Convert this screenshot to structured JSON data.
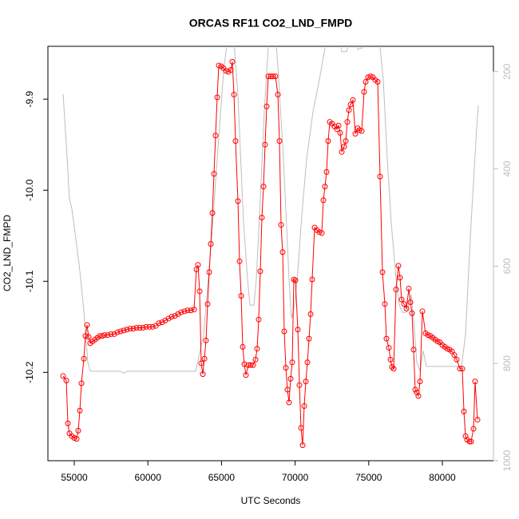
{
  "chart_data": {
    "type": "line",
    "title": "ORCAS RF11 CO2_LND_FMPD",
    "x_label": "UTC Seconds",
    "y_label": "CO2_LND_FMPD",
    "xlim": [
      53210,
      83471
    ],
    "xticks": [
      55000,
      60000,
      65000,
      70000,
      75000,
      80000
    ],
    "ylim": [
      -10.297,
      -9.842
    ],
    "yticks": [
      -10.2,
      -10.1,
      {
        "value": -10,
        "label": "-10.0"
      },
      -9.9
    ],
    "y2lim": [
      1000,
      148
    ],
    "y2ticks": [
      200,
      400,
      600,
      800,
      1000
    ],
    "grid": false,
    "series": [
      {
        "color": "#bebebe",
        "axis": "y2",
        "x": [
          54241,
          54458,
          54675,
          54837,
          55108,
          55380,
          55651,
          55922,
          56085,
          58091,
          58362,
          58633,
          63243,
          63785,
          64327,
          64707,
          65141,
          65466,
          65792,
          66117,
          66496,
          66768,
          66930,
          67202,
          67365,
          67636,
          67907,
          68178,
          68341,
          68666,
          68883,
          69208,
          69588,
          69751,
          69967,
          70184,
          70455,
          70781,
          71215,
          71649,
          72083,
          72462,
          72896,
          73167,
          73493,
          73655,
          73926,
          74252,
          74577,
          74903,
          75662,
          75987,
          76259,
          76530,
          76855,
          77072,
          77289,
          77560,
          77722,
          77885,
          78048,
          78265,
          78482,
          78699,
          78916,
          81302,
          81573,
          81953,
          82333,
          82441
        ],
        "values": [
          246,
          348,
          462,
          482,
          544,
          610,
          692,
          798,
          816,
          816,
          820,
          816,
          816,
          741,
          544,
          380,
          200,
          118,
          118,
          249,
          511,
          626,
          680,
          680,
          626,
          462,
          282,
          148,
          118,
          118,
          216,
          380,
          626,
          708,
          680,
          610,
          495,
          380,
          282,
          216,
          143,
          118,
          118,
          159,
          159,
          143,
          118,
          154,
          151,
          118,
          118,
          216,
          380,
          511,
          626,
          680,
          695,
          695,
          680,
          659,
          708,
          798,
          816,
          774,
          806,
          806,
          741,
          511,
          315,
          270
        ]
      },
      {
        "color": "#ff0000",
        "marker": "circle",
        "x": [
          54241,
          54458,
          54566,
          54675,
          54837,
          55000,
          55163,
          55271,
          55380,
          55488,
          55651,
          55759,
          55868,
          55976,
          56085,
          56247,
          56410,
          56573,
          56736,
          56898,
          57061,
          57278,
          57495,
          57712,
          57928,
          58145,
          58362,
          58579,
          58796,
          59013,
          59230,
          59447,
          59664,
          59881,
          60098,
          60315,
          60531,
          60748,
          60965,
          61182,
          61399,
          61616,
          61833,
          62050,
          62267,
          62483,
          62700,
          62917,
          63135,
          63297,
          63406,
          63514,
          63623,
          63731,
          63839,
          63948,
          64056,
          64165,
          64273,
          64382,
          64490,
          64598,
          64707,
          64815,
          64978,
          65141,
          65304,
          65466,
          65629,
          65737,
          65846,
          65954,
          66117,
          66225,
          66334,
          66442,
          66551,
          66659,
          66822,
          66985,
          67148,
          67310,
          67419,
          67527,
          67636,
          67744,
          67853,
          67961,
          68069,
          68178,
          68341,
          68503,
          68666,
          68829,
          68937,
          69046,
          69154,
          69262,
          69371,
          69479,
          69588,
          69696,
          69805,
          69913,
          70021,
          70184,
          70293,
          70401,
          70510,
          70618,
          70727,
          70835,
          70944,
          71052,
          71160,
          71323,
          71486,
          71649,
          71811,
          71920,
          72028,
          72137,
          72245,
          72354,
          72516,
          72679,
          72842,
          72950,
          73059,
          73167,
          73330,
          73438,
          73547,
          73655,
          73764,
          73926,
          74089,
          74252,
          74360,
          74523,
          74686,
          74794,
          74957,
          75120,
          75282,
          75445,
          75608,
          75770,
          75933,
          76096,
          76204,
          76367,
          76475,
          76584,
          76692,
          76855,
          77017,
          77126,
          77234,
          77397,
          77560,
          77722,
          77831,
          77939,
          78048,
          78156,
          78265,
          78373,
          78482,
          78644,
          78861,
          79024,
          79187,
          79350,
          79512,
          79675,
          79838,
          80000,
          80163,
          80326,
          80489,
          80651,
          80814,
          80977,
          81194,
          81357,
          81465,
          81573,
          81682,
          81844,
          81953,
          82116,
          82224,
          82387
        ],
        "values": [
          -10.204,
          -10.209,
          -10.256,
          -10.267,
          -10.27,
          -10.272,
          -10.273,
          -10.264,
          -10.242,
          -10.212,
          -10.185,
          -10.16,
          -10.148,
          -10.161,
          -10.168,
          -10.166,
          -10.164,
          -10.162,
          -10.16,
          -10.16,
          -10.159,
          -10.159,
          -10.158,
          -10.158,
          -10.156,
          -10.155,
          -10.154,
          -10.153,
          -10.152,
          -10.152,
          -10.151,
          -10.151,
          -10.151,
          -10.15,
          -10.15,
          -10.15,
          -10.149,
          -10.146,
          -10.145,
          -10.143,
          -10.141,
          -10.139,
          -10.138,
          -10.136,
          -10.134,
          -10.133,
          -10.132,
          -10.132,
          -10.131,
          -10.087,
          -10.082,
          -10.111,
          -10.19,
          -10.202,
          -10.185,
          -10.165,
          -10.125,
          -10.09,
          -10.059,
          -10.025,
          -9.982,
          -9.94,
          -9.898,
          -9.863,
          -9.864,
          -9.866,
          -9.869,
          -9.87,
          -9.868,
          -9.859,
          -9.895,
          -9.946,
          -10.012,
          -10.078,
          -10.116,
          -10.172,
          -10.191,
          -10.203,
          -10.192,
          -10.192,
          -10.192,
          -10.186,
          -10.174,
          -10.142,
          -10.089,
          -10.03,
          -9.996,
          -9.95,
          -9.908,
          -9.875,
          -9.875,
          -9.875,
          -9.875,
          -9.895,
          -9.946,
          -10.038,
          -10.068,
          -10.155,
          -10.195,
          -10.219,
          -10.233,
          -10.207,
          -10.189,
          -10.098,
          -10.099,
          -10.153,
          -10.214,
          -10.261,
          -10.28,
          -10.237,
          -10.21,
          -10.189,
          -10.163,
          -10.136,
          -10.098,
          -10.041,
          -10.044,
          -10.046,
          -10.047,
          -10.011,
          -9.996,
          -9.98,
          -9.946,
          -9.925,
          -9.927,
          -9.93,
          -9.933,
          -9.929,
          -9.937,
          -9.958,
          -9.952,
          -9.946,
          -9.925,
          -9.912,
          -9.906,
          -9.901,
          -9.938,
          -9.932,
          -9.934,
          -9.935,
          -9.892,
          -9.881,
          -9.876,
          -9.875,
          -9.876,
          -9.879,
          -9.881,
          -9.985,
          -10.09,
          -10.125,
          -10.163,
          -10.173,
          -10.186,
          -10.194,
          -10.196,
          -10.109,
          -10.083,
          -10.096,
          -10.12,
          -10.125,
          -10.13,
          -10.108,
          -10.123,
          -10.135,
          -10.175,
          -10.219,
          -10.222,
          -10.226,
          -10.21,
          -10.133,
          -10.157,
          -10.159,
          -10.16,
          -10.162,
          -10.164,
          -10.166,
          -10.167,
          -10.17,
          -10.172,
          -10.174,
          -10.175,
          -10.177,
          -10.181,
          -10.186,
          -10.196,
          -10.196,
          -10.243,
          -10.27,
          -10.274,
          -10.276,
          -10.276,
          -10.262,
          -10.21,
          -10.252
        ]
      }
    ]
  }
}
